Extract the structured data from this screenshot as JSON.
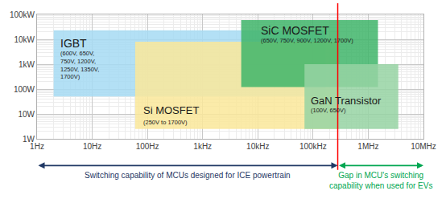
{
  "chart_data": {
    "type": "region",
    "log": true,
    "grid": true,
    "xlim": [
      1,
      10000000
    ],
    "ylim": [
      1,
      100000
    ],
    "xticks": [
      {
        "value": 1,
        "label": "1Hz"
      },
      {
        "value": 10,
        "label": "10Hz"
      },
      {
        "value": 100,
        "label": "100Hz"
      },
      {
        "value": 1000,
        "label": "1kHz"
      },
      {
        "value": 10000,
        "label": "10kHz"
      },
      {
        "value": 100000,
        "label": "100kHz"
      },
      {
        "value": 1000000,
        "label": "1MHz"
      },
      {
        "value": 10000000,
        "label": "10MHz"
      }
    ],
    "yticks": [
      {
        "value": 1,
        "label": "1W"
      },
      {
        "value": 10,
        "label": "10W"
      },
      {
        "value": 100,
        "label": "100W"
      },
      {
        "value": 1000,
        "label": "1kW"
      },
      {
        "value": 10000,
        "label": "10kW"
      },
      {
        "value": 100000,
        "label": "100kW"
      }
    ],
    "series": [
      {
        "name": "IGBT",
        "label_lines": [
          "(600V, 650V,",
          "750V, 1200V,",
          "1250V, 1350V,",
          "1700V)"
        ],
        "color": "#a6daf3",
        "x": [
          2,
          170000
        ],
        "y": [
          50,
          23000
        ]
      },
      {
        "name": "Si MOSFET",
        "label_lines": [
          "(250V to 1700V)"
        ],
        "color": "#fae79a",
        "x": [
          60,
          300000
        ],
        "y": [
          2.5,
          8000
        ]
      },
      {
        "name": "SiC MOSFET",
        "label_lines": [
          "(650V, 750V, 900V, 1200V, 1700V)"
        ],
        "color": "#3fb56a",
        "x": [
          5000,
          1500000
        ],
        "y": [
          120,
          60000
        ]
      },
      {
        "name": "GaN Transistor",
        "label_lines": [
          "(100V, 650V)"
        ],
        "color": "#96d3a3",
        "x": [
          70000,
          3500000
        ],
        "y": [
          2.5,
          1000
        ]
      }
    ],
    "vline": {
      "x": 280000,
      "color": "#ff0000"
    },
    "annotations": [
      {
        "text_lines": [
          "Switching capability of MCUs designed for ICE powertrain"
        ],
        "from": 1,
        "to": 280000,
        "color": "#1f3864"
      },
      {
        "text_lines": [
          "Gap in MCU's switching",
          "capability when used for EVs"
        ],
        "from": 280000,
        "to": 10000000,
        "color": "#00a651"
      }
    ]
  }
}
